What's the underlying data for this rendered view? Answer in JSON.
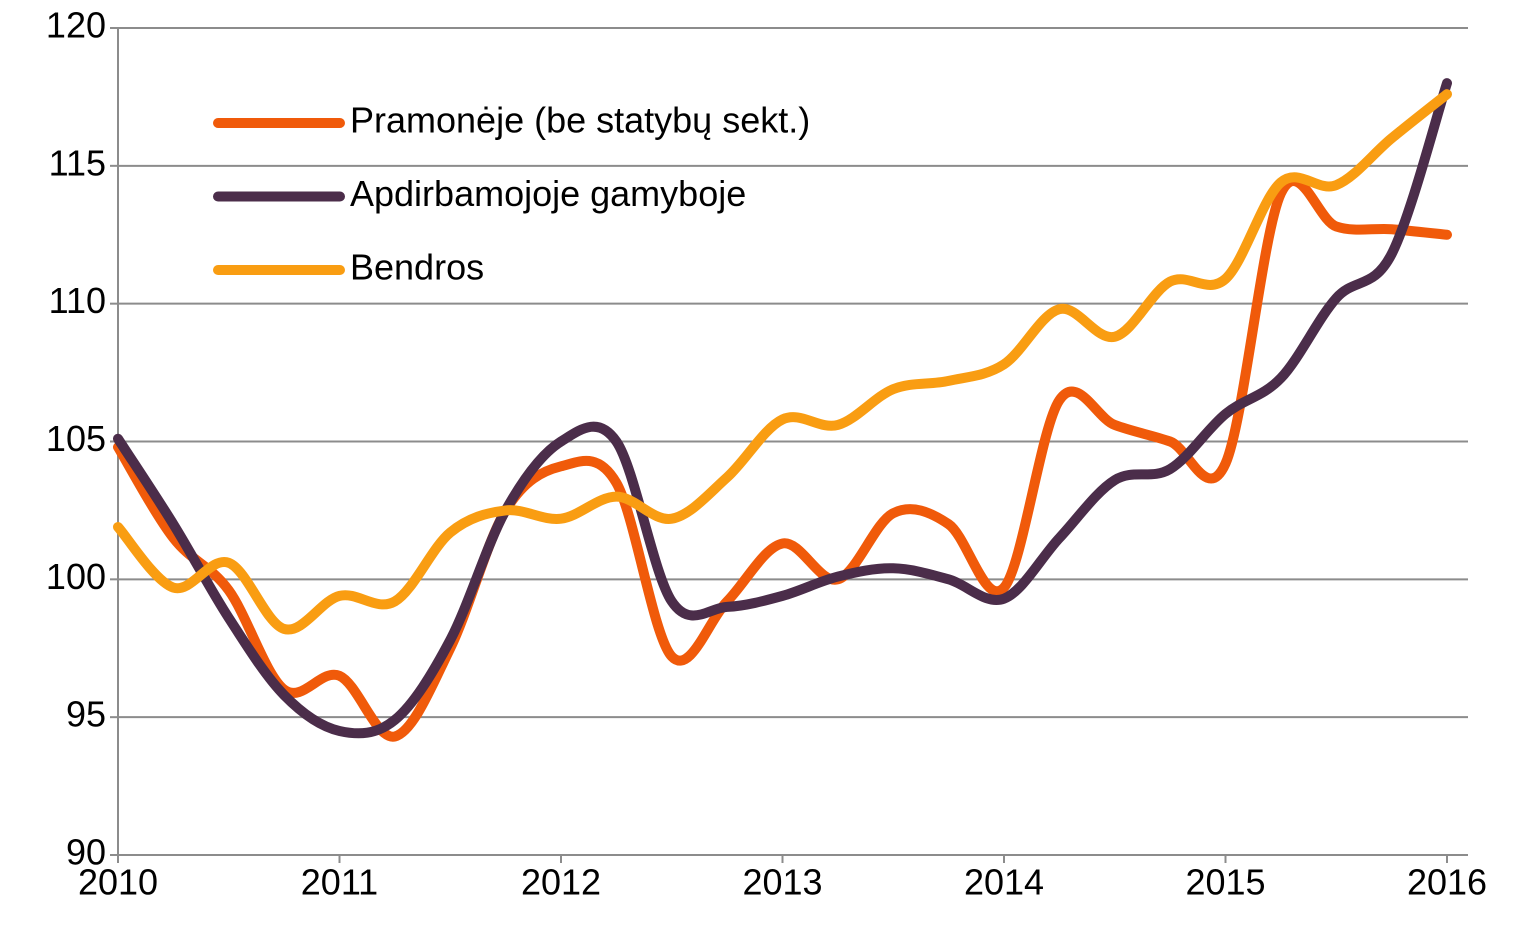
{
  "chart_data": {
    "type": "line",
    "x": [
      2010,
      2010.25,
      2010.5,
      2010.75,
      2011,
      2011.25,
      2011.5,
      2011.75,
      2012,
      2012.25,
      2012.5,
      2012.75,
      2013,
      2013.25,
      2013.5,
      2013.75,
      2014,
      2014.25,
      2014.5,
      2014.75,
      2015,
      2015.25,
      2015.5,
      2015.75,
      2016
    ],
    "series": [
      {
        "name": "Pramonėje (be statybų sekt.)",
        "color": "#f05a0a",
        "values": [
          104.8,
          101.5,
          99.6,
          96.0,
          96.5,
          94.3,
          97.5,
          102.5,
          104.1,
          103.5,
          97.2,
          99.2,
          101.3,
          100.0,
          102.4,
          102.0,
          99.7,
          106.5,
          105.6,
          105.0,
          104.2,
          114.0,
          112.8,
          112.7,
          112.5
        ]
      },
      {
        "name": "Apdirbamojoje gamyboje",
        "color": "#4b2d4a",
        "values": [
          105.1,
          102.0,
          98.6,
          95.8,
          94.5,
          94.9,
          97.8,
          102.5,
          105.0,
          105.0,
          99.2,
          99.0,
          99.4,
          100.1,
          100.4,
          100.0,
          99.3,
          101.5,
          103.6,
          104.0,
          106.0,
          107.3,
          110.2,
          111.8,
          118.0
        ]
      },
      {
        "name": "Bendros",
        "color": "#f99d12",
        "values": [
          101.9,
          99.7,
          100.6,
          98.2,
          99.4,
          99.2,
          101.7,
          102.5,
          102.2,
          103.0,
          102.2,
          103.7,
          105.8,
          105.6,
          106.9,
          107.2,
          107.8,
          109.8,
          108.8,
          110.8,
          110.9,
          114.4,
          114.3,
          116.0,
          117.6
        ]
      }
    ],
    "xlim": [
      2010,
      2016
    ],
    "xticks": [
      2010,
      2011,
      2012,
      2013,
      2014,
      2015,
      2016
    ],
    "ylim": [
      90,
      120
    ],
    "yticks": [
      90,
      95,
      100,
      105,
      110,
      115,
      120
    ],
    "grid": true,
    "legend": "upper left"
  }
}
